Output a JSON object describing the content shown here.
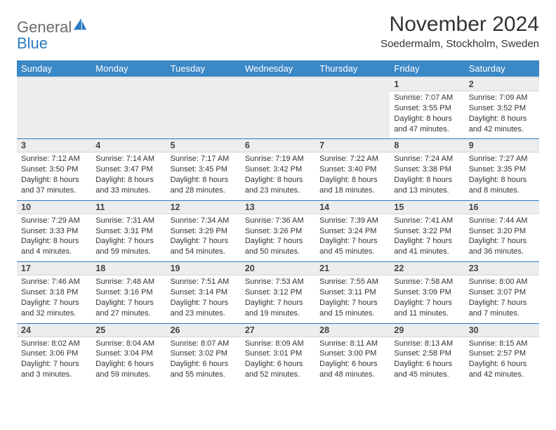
{
  "brand": {
    "word1": "General",
    "word2": "Blue"
  },
  "title": "November 2024",
  "location": "Soedermalm, Stockholm, Sweden",
  "colors": {
    "header_blue": "#3b88c7",
    "rule_blue": "#2d7cc1",
    "daynum_bg": "#ededed",
    "logo_gray": "#6b6b6b",
    "logo_blue": "#2d7cc1"
  },
  "weekdays": [
    "Sunday",
    "Monday",
    "Tuesday",
    "Wednesday",
    "Thursday",
    "Friday",
    "Saturday"
  ],
  "weeks": [
    [
      null,
      null,
      null,
      null,
      null,
      {
        "n": "1",
        "sr": "7:07 AM",
        "ss": "3:55 PM",
        "dl": "8 hours and 47 minutes."
      },
      {
        "n": "2",
        "sr": "7:09 AM",
        "ss": "3:52 PM",
        "dl": "8 hours and 42 minutes."
      }
    ],
    [
      {
        "n": "3",
        "sr": "7:12 AM",
        "ss": "3:50 PM",
        "dl": "8 hours and 37 minutes."
      },
      {
        "n": "4",
        "sr": "7:14 AM",
        "ss": "3:47 PM",
        "dl": "8 hours and 33 minutes."
      },
      {
        "n": "5",
        "sr": "7:17 AM",
        "ss": "3:45 PM",
        "dl": "8 hours and 28 minutes."
      },
      {
        "n": "6",
        "sr": "7:19 AM",
        "ss": "3:42 PM",
        "dl": "8 hours and 23 minutes."
      },
      {
        "n": "7",
        "sr": "7:22 AM",
        "ss": "3:40 PM",
        "dl": "8 hours and 18 minutes."
      },
      {
        "n": "8",
        "sr": "7:24 AM",
        "ss": "3:38 PM",
        "dl": "8 hours and 13 minutes."
      },
      {
        "n": "9",
        "sr": "7:27 AM",
        "ss": "3:35 PM",
        "dl": "8 hours and 8 minutes."
      }
    ],
    [
      {
        "n": "10",
        "sr": "7:29 AM",
        "ss": "3:33 PM",
        "dl": "8 hours and 4 minutes."
      },
      {
        "n": "11",
        "sr": "7:31 AM",
        "ss": "3:31 PM",
        "dl": "7 hours and 59 minutes."
      },
      {
        "n": "12",
        "sr": "7:34 AM",
        "ss": "3:29 PM",
        "dl": "7 hours and 54 minutes."
      },
      {
        "n": "13",
        "sr": "7:36 AM",
        "ss": "3:26 PM",
        "dl": "7 hours and 50 minutes."
      },
      {
        "n": "14",
        "sr": "7:39 AM",
        "ss": "3:24 PM",
        "dl": "7 hours and 45 minutes."
      },
      {
        "n": "15",
        "sr": "7:41 AM",
        "ss": "3:22 PM",
        "dl": "7 hours and 41 minutes."
      },
      {
        "n": "16",
        "sr": "7:44 AM",
        "ss": "3:20 PM",
        "dl": "7 hours and 36 minutes."
      }
    ],
    [
      {
        "n": "17",
        "sr": "7:46 AM",
        "ss": "3:18 PM",
        "dl": "7 hours and 32 minutes."
      },
      {
        "n": "18",
        "sr": "7:48 AM",
        "ss": "3:16 PM",
        "dl": "7 hours and 27 minutes."
      },
      {
        "n": "19",
        "sr": "7:51 AM",
        "ss": "3:14 PM",
        "dl": "7 hours and 23 minutes."
      },
      {
        "n": "20",
        "sr": "7:53 AM",
        "ss": "3:12 PM",
        "dl": "7 hours and 19 minutes."
      },
      {
        "n": "21",
        "sr": "7:55 AM",
        "ss": "3:11 PM",
        "dl": "7 hours and 15 minutes."
      },
      {
        "n": "22",
        "sr": "7:58 AM",
        "ss": "3:09 PM",
        "dl": "7 hours and 11 minutes."
      },
      {
        "n": "23",
        "sr": "8:00 AM",
        "ss": "3:07 PM",
        "dl": "7 hours and 7 minutes."
      }
    ],
    [
      {
        "n": "24",
        "sr": "8:02 AM",
        "ss": "3:06 PM",
        "dl": "7 hours and 3 minutes."
      },
      {
        "n": "25",
        "sr": "8:04 AM",
        "ss": "3:04 PM",
        "dl": "6 hours and 59 minutes."
      },
      {
        "n": "26",
        "sr": "8:07 AM",
        "ss": "3:02 PM",
        "dl": "6 hours and 55 minutes."
      },
      {
        "n": "27",
        "sr": "8:09 AM",
        "ss": "3:01 PM",
        "dl": "6 hours and 52 minutes."
      },
      {
        "n": "28",
        "sr": "8:11 AM",
        "ss": "3:00 PM",
        "dl": "6 hours and 48 minutes."
      },
      {
        "n": "29",
        "sr": "8:13 AM",
        "ss": "2:58 PM",
        "dl": "6 hours and 45 minutes."
      },
      {
        "n": "30",
        "sr": "8:15 AM",
        "ss": "2:57 PM",
        "dl": "6 hours and 42 minutes."
      }
    ]
  ],
  "labels": {
    "sunrise": "Sunrise: ",
    "sunset": "Sunset: ",
    "daylight": "Daylight: "
  }
}
